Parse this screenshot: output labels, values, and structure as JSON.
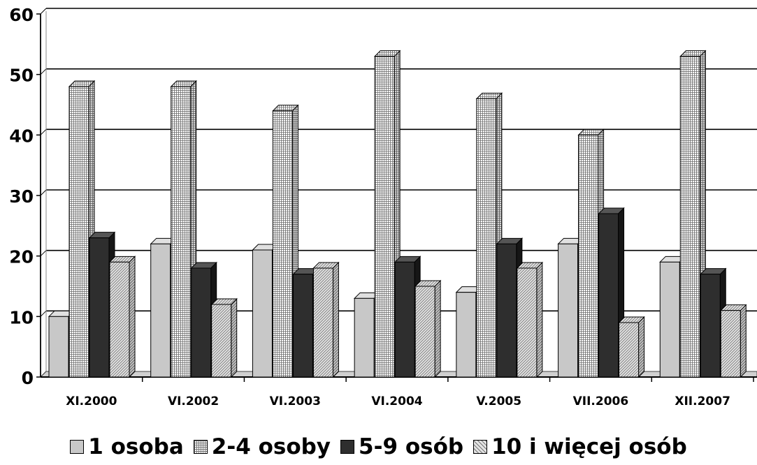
{
  "chart_data": {
    "type": "bar",
    "variant": "3d-clustered",
    "categories": [
      "XI.2000",
      "VI.2002",
      "VI.2003",
      "VI.2004",
      "V.2005",
      "VII.2006",
      "XII.2007"
    ],
    "series": [
      {
        "name": "1 osoba",
        "values": [
          10,
          22,
          21,
          13,
          14,
          22,
          19
        ],
        "fill": "light-gray",
        "color": "#c8c8c8"
      },
      {
        "name": "2-4 osoby",
        "values": [
          48,
          48,
          44,
          53,
          46,
          40,
          53
        ],
        "fill": "grid-pattern",
        "color": "#e8e8e8"
      },
      {
        "name": "5-9 osób",
        "values": [
          23,
          18,
          17,
          19,
          22,
          27,
          17
        ],
        "fill": "dark",
        "color": "#2e2e2e"
      },
      {
        "name": "10 i więcej osób",
        "values": [
          19,
          12,
          18,
          15,
          18,
          9,
          11
        ],
        "fill": "diagonal-hatch",
        "color": "#b8b8b8"
      }
    ],
    "ylim": [
      0,
      60
    ],
    "yticks": [
      0,
      10,
      20,
      30,
      40,
      50,
      60
    ],
    "ytick_labels": [
      "0",
      "10",
      "20",
      "30",
      "40",
      "50",
      "60"
    ],
    "grid": true,
    "legend_position": "bottom",
    "title": "",
    "xlabel": "",
    "ylabel": ""
  }
}
